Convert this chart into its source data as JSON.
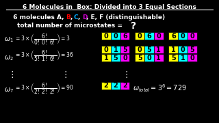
{
  "title": "6 Molecules in  Box: Divided into 3 Equal Sections",
  "bg_color": "#000000",
  "box_yellow": "#FFFF00",
  "box_cyan": "#00FFFF",
  "box_magenta": "#FF00FF",
  "omega1_boxes": [
    [
      "0",
      "0",
      "6"
    ],
    [
      "0",
      "6",
      "0"
    ],
    [
      "6",
      "0",
      "0"
    ]
  ],
  "omega2_boxes_row1": [
    [
      "0",
      "1",
      "5"
    ],
    [
      "0",
      "5",
      "1"
    ],
    [
      "1",
      "0",
      "5"
    ]
  ],
  "omega2_boxes_row2": [
    [
      "1",
      "5",
      "0"
    ],
    [
      "5",
      "0",
      "1"
    ],
    [
      "5",
      "1",
      "0"
    ]
  ],
  "omega7_boxes": [
    [
      "2",
      "2",
      "2"
    ]
  ],
  "B_color": "#FF0000",
  "C_color": "#00AAFF",
  "D_color": "#CC00CC",
  "E_color": "#000000",
  "F_color": "#00CC00"
}
